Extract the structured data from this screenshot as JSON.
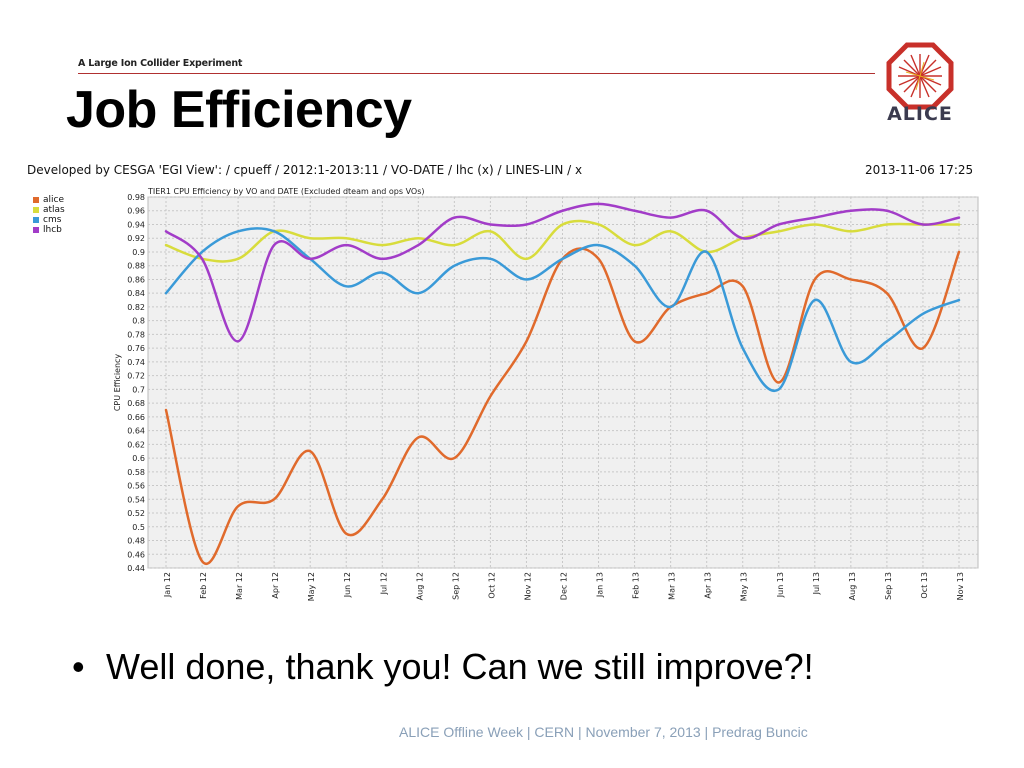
{
  "header": {
    "subtitle": "A Large Ion Collider Experiment",
    "title": "Job Efficiency",
    "logo_text": "ALICE"
  },
  "chart_meta": {
    "developed_by": "Developed by CESGA 'EGI View': / cpueff / 2012:1-2013:11 / VO-DATE / lhc (x) / LINES-LIN / x",
    "timestamp": "2013-11-06 17:25"
  },
  "chart_data": {
    "type": "line",
    "title": "TIER1  CPU Efficiency by VO and DATE (Excluded dteam and ops VOs)",
    "xlabel": "",
    "ylabel": "CPU Efficiency",
    "ylim": [
      0.44,
      0.98
    ],
    "grid": true,
    "legend_position": "top-left",
    "categories": [
      "Jan 12",
      "Feb 12",
      "Mar 12",
      "Apr 12",
      "May 12",
      "Jun 12",
      "Jul 12",
      "Aug 12",
      "Sep 12",
      "Oct 12",
      "Nov 12",
      "Dec 12",
      "Jan 13",
      "Feb 13",
      "Mar 13",
      "Apr 13",
      "May 13",
      "Jun 13",
      "Jul 13",
      "Aug 13",
      "Sep 13",
      "Oct 13",
      "Nov 13"
    ],
    "y_ticks": [
      "0.44",
      "0.46",
      "0.48",
      "0.5",
      "0.52",
      "0.54",
      "0.56",
      "0.58",
      "0.6",
      "0.62",
      "0.64",
      "0.66",
      "0.68",
      "0.7",
      "0.72",
      "0.74",
      "0.76",
      "0.78",
      "0.8",
      "0.82",
      "0.84",
      "0.86",
      "0.88",
      "0.9",
      "0.92",
      "0.94",
      "0.96",
      "0.98"
    ],
    "series": [
      {
        "name": "alice",
        "color": "#e06a2c",
        "values": [
          0.67,
          0.45,
          0.53,
          0.54,
          0.61,
          0.49,
          0.54,
          0.63,
          0.6,
          0.69,
          0.77,
          0.89,
          0.89,
          0.77,
          0.82,
          0.84,
          0.85,
          0.71,
          0.86,
          0.86,
          0.84,
          0.76,
          0.9
        ]
      },
      {
        "name": "atlas",
        "color": "#d8dc3c",
        "values": [
          0.91,
          0.89,
          0.89,
          0.93,
          0.92,
          0.92,
          0.91,
          0.92,
          0.91,
          0.93,
          0.89,
          0.94,
          0.94,
          0.91,
          0.93,
          0.9,
          0.92,
          0.93,
          0.94,
          0.93,
          0.94,
          0.94,
          0.94
        ]
      },
      {
        "name": "cms",
        "color": "#3a9ad8",
        "values": [
          0.84,
          0.9,
          0.93,
          0.93,
          0.89,
          0.85,
          0.87,
          0.84,
          0.88,
          0.89,
          0.86,
          0.89,
          0.91,
          0.88,
          0.82,
          0.9,
          0.76,
          0.7,
          0.83,
          0.74,
          0.77,
          0.81,
          0.83
        ]
      },
      {
        "name": "lhcb",
        "color": "#a23cc8",
        "values": [
          0.93,
          0.89,
          0.77,
          0.91,
          0.89,
          0.91,
          0.89,
          0.91,
          0.95,
          0.94,
          0.94,
          0.96,
          0.97,
          0.96,
          0.95,
          0.96,
          0.92,
          0.94,
          0.95,
          0.96,
          0.96,
          0.94,
          0.95
        ]
      }
    ]
  },
  "bullet": {
    "dot": "•",
    "text": "Well done, thank you!  Can we still improve?!"
  },
  "footer": {
    "text": "ALICE Offline Week | CERN | November 7,  2013  |  Predrag Buncic"
  }
}
